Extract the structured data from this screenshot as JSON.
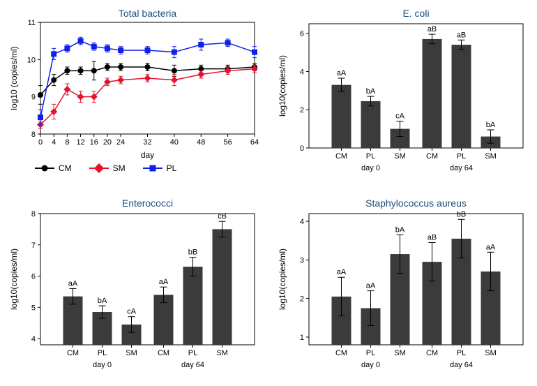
{
  "line_chart": {
    "title": "Total bacteria",
    "x_title": "day",
    "y_title": "log10 (copies/ml)",
    "x_ticks": [
      0,
      4,
      8,
      12,
      16,
      20,
      24,
      32,
      40,
      48,
      56,
      64
    ],
    "y_ticks": [
      8,
      9,
      10,
      11
    ],
    "ylim": [
      8,
      11
    ],
    "xlim": [
      0,
      64
    ],
    "series": [
      {
        "name": "CM",
        "color": "#000000",
        "marker": "circle",
        "labels": [
          "0",
          "4",
          "8",
          "12",
          "16",
          "20",
          "24",
          "32",
          "40",
          "48",
          "56",
          "64"
        ],
        "x": [
          0,
          4,
          8,
          12,
          16,
          20,
          24,
          32,
          40,
          48,
          56,
          64
        ],
        "y": [
          9.05,
          9.45,
          9.7,
          9.7,
          9.7,
          9.8,
          9.8,
          9.8,
          9.7,
          9.75,
          9.75,
          9.8
        ],
        "err": [
          0.25,
          0.15,
          0.1,
          0.1,
          0.25,
          0.1,
          0.1,
          0.1,
          0.15,
          0.1,
          0.1,
          0.1
        ]
      },
      {
        "name": "SM",
        "color": "#e8112d",
        "marker": "diamond",
        "x": [
          0,
          4,
          8,
          12,
          16,
          20,
          24,
          32,
          40,
          48,
          56,
          64
        ],
        "y": [
          8.25,
          8.6,
          9.2,
          9.0,
          9.0,
          9.4,
          9.45,
          9.5,
          9.45,
          9.6,
          9.7,
          9.75
        ],
        "err": [
          0.1,
          0.2,
          0.15,
          0.15,
          0.15,
          0.1,
          0.1,
          0.1,
          0.15,
          0.1,
          0.1,
          0.1
        ]
      },
      {
        "name": "PL",
        "color": "#1020e8",
        "marker": "square",
        "x": [
          0,
          4,
          8,
          12,
          16,
          20,
          24,
          32,
          40,
          48,
          56,
          64
        ],
        "y": [
          8.45,
          10.15,
          10.3,
          10.5,
          10.35,
          10.3,
          10.25,
          10.25,
          10.2,
          10.4,
          10.45,
          10.2
        ],
        "err": [
          0.2,
          0.15,
          0.1,
          0.1,
          0.1,
          0.1,
          0.1,
          0.1,
          0.15,
          0.15,
          0.1,
          0.15
        ]
      }
    ],
    "legend": [
      "CM",
      "SM",
      "PL"
    ]
  },
  "bar_charts": {
    "ecoli": {
      "title": "E. coli",
      "y_title": "log10(copies/ml)",
      "y_ticks": [
        0,
        2,
        4,
        6
      ],
      "ylim": [
        0,
        6.5
      ],
      "groups": [
        "day 0",
        "day 64"
      ],
      "cats": [
        "CM",
        "PL",
        "SM",
        "CM",
        "PL",
        "SM"
      ],
      "vals": [
        3.3,
        2.45,
        1.0,
        5.7,
        5.4,
        0.6
      ],
      "errs": [
        0.35,
        0.25,
        0.4,
        0.25,
        0.25,
        0.35
      ],
      "annot": [
        "aA",
        "bA",
        "cA",
        "aB",
        "aB",
        "bA"
      ]
    },
    "entero": {
      "title": "Enterococci",
      "y_title": "log10(copies/ml)",
      "y_ticks": [
        4,
        5,
        6,
        7,
        8
      ],
      "ylim": [
        3.8,
        8
      ],
      "groups": [
        "day 0",
        "day 64"
      ],
      "cats": [
        "CM",
        "PL",
        "SM",
        "CM",
        "PL",
        "SM"
      ],
      "vals": [
        5.35,
        4.85,
        4.45,
        5.4,
        6.3,
        7.5
      ],
      "errs": [
        0.25,
        0.2,
        0.25,
        0.25,
        0.3,
        0.25
      ],
      "annot": [
        "aA",
        "bA",
        "cA",
        "aA",
        "bB",
        "cB"
      ]
    },
    "staph": {
      "title": "Staphylococcus aureus",
      "y_title": "log10(copies/ml)",
      "y_ticks": [
        1,
        2,
        3,
        4
      ],
      "ylim": [
        0.8,
        4.2
      ],
      "groups": [
        "day 0",
        "day 64"
      ],
      "cats": [
        "CM",
        "PL",
        "SM",
        "CM",
        "PL",
        "SM"
      ],
      "vals": [
        2.05,
        1.75,
        3.15,
        2.95,
        3.55,
        2.7
      ],
      "errs": [
        0.5,
        0.45,
        0.5,
        0.5,
        0.5,
        0.5
      ],
      "annot": [
        "aA",
        "aA",
        "bA",
        "aB",
        "bB",
        "aA"
      ]
    }
  },
  "colors": {
    "bar": "#3b3b3b",
    "title": "#1f4e79",
    "bg": "#ffffff"
  }
}
